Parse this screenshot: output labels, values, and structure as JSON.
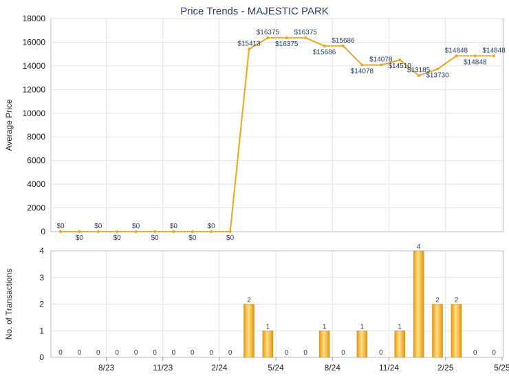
{
  "chart_data": [
    {
      "type": "line",
      "title": "Price Trends - MAJESTIC PARK",
      "ylabel": "Average Price",
      "ylim": [
        0,
        18000
      ],
      "yticks": [
        "0",
        "2000",
        "4000",
        "6000",
        "8000",
        "10000",
        "12000",
        "14000",
        "16000",
        "18000"
      ],
      "x": [
        "2023-06",
        "2023-07",
        "2023-08",
        "2023-09",
        "2023-10",
        "2023-11",
        "2023-12",
        "2024-01",
        "2024-02",
        "2024-03",
        "2024-04",
        "2024-05",
        "2024-06",
        "2024-07",
        "2024-08",
        "2024-09",
        "2024-10",
        "2024-11",
        "2024-12",
        "2025-01",
        "2025-02",
        "2025-03",
        "2025-04",
        "2025-05"
      ],
      "values": [
        0,
        0,
        0,
        0,
        0,
        0,
        0,
        0,
        0,
        0,
        15413,
        16375,
        16375,
        16375,
        15686,
        15686,
        14078,
        14078,
        14510,
        13185,
        13730,
        14848,
        14848,
        14848
      ],
      "labels": [
        "$0",
        "$0",
        "$0",
        "$0",
        "$0",
        "$0",
        "$0",
        "$0",
        "$0",
        "$0",
        "$15413",
        "$16375",
        "$16375",
        "$16375",
        "$15686",
        "$15686",
        "$14078",
        "$14078",
        "$14510",
        "$13185",
        "$13730",
        "$14848",
        "$14848",
        "$14848"
      ],
      "color": "#f2a515",
      "grid": true
    },
    {
      "type": "bar",
      "ylabel": "No. of Transactions",
      "ylim": [
        0,
        4
      ],
      "yticks": [
        "0",
        "1",
        "2",
        "3",
        "4"
      ],
      "x": [
        "2023-06",
        "2023-07",
        "2023-08",
        "2023-09",
        "2023-10",
        "2023-11",
        "2023-12",
        "2024-01",
        "2024-02",
        "2024-03",
        "2024-04",
        "2024-05",
        "2024-06",
        "2024-07",
        "2024-08",
        "2024-09",
        "2024-10",
        "2024-11",
        "2024-12",
        "2025-01",
        "2025-02",
        "2025-03",
        "2025-04",
        "2025-05"
      ],
      "values": [
        0,
        0,
        0,
        0,
        0,
        0,
        0,
        0,
        0,
        0,
        2,
        1,
        0,
        0,
        1,
        0,
        1,
        0,
        1,
        4,
        2,
        2,
        0,
        0
      ],
      "xticks": [
        "8/23",
        "11/23",
        "2/24",
        "5/24",
        "8/24",
        "11/24",
        "2/25",
        "5/25"
      ],
      "color": "#f2a515",
      "grid": true
    }
  ]
}
